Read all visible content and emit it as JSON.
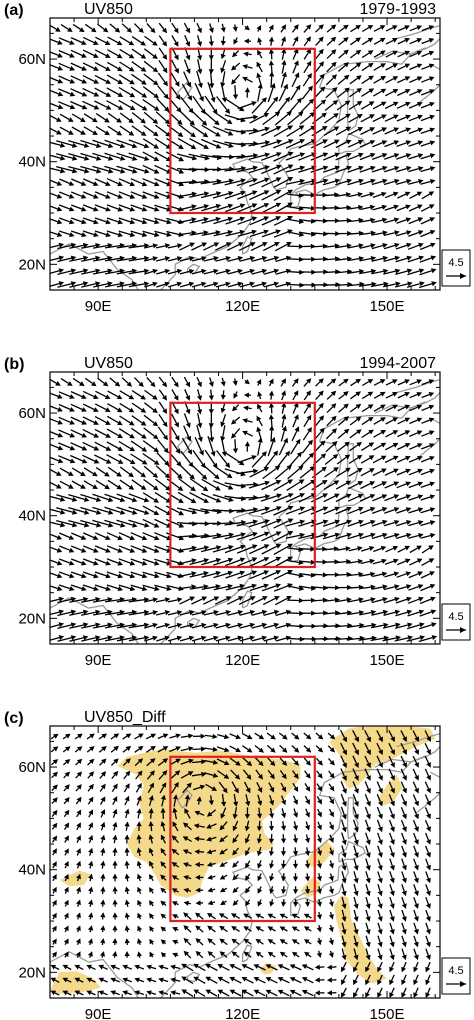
{
  "chart_data": [
    {
      "type": "vector-field",
      "panel_label": "(a)",
      "title": "UV850",
      "period": "1979-1993",
      "x_tick_labels": [
        "90E",
        "120E",
        "150E"
      ],
      "y_tick_labels": [
        "20N",
        "40N",
        "60N"
      ],
      "x_ticks_deg": [
        90,
        120,
        150
      ],
      "y_ticks_deg": [
        20,
        40,
        60
      ],
      "xlim": [
        80,
        161
      ],
      "ylim": [
        15,
        68
      ],
      "region_box": {
        "lon": [
          105,
          135
        ],
        "lat": [
          30,
          62
        ],
        "color": "#e02020"
      },
      "reference_vector": "4.5",
      "flow_pattern": "baseline",
      "shading": false
    },
    {
      "type": "vector-field",
      "panel_label": "(b)",
      "title": "UV850",
      "period": "1994-2007",
      "x_tick_labels": [
        "90E",
        "120E",
        "150E"
      ],
      "y_tick_labels": [
        "20N",
        "40N",
        "60N"
      ],
      "x_ticks_deg": [
        90,
        120,
        150
      ],
      "y_ticks_deg": [
        20,
        40,
        60
      ],
      "xlim": [
        80,
        161
      ],
      "ylim": [
        15,
        68
      ],
      "region_box": {
        "lon": [
          105,
          135
        ],
        "lat": [
          30,
          62
        ],
        "color": "#e02020"
      },
      "reference_vector": "4.5",
      "flow_pattern": "baseline",
      "shading": false
    },
    {
      "type": "vector-field",
      "panel_label": "(c)",
      "title": "UV850_Diff",
      "period": "",
      "x_tick_labels": [
        "90E",
        "120E",
        "150E"
      ],
      "y_tick_labels": [
        "20N",
        "40N",
        "60N"
      ],
      "x_ticks_deg": [
        90,
        120,
        150
      ],
      "y_ticks_deg": [
        20,
        40,
        60
      ],
      "xlim": [
        80,
        161
      ],
      "ylim": [
        15,
        68
      ],
      "region_box": {
        "lon": [
          105,
          135
        ],
        "lat": [
          30,
          62
        ],
        "color": "#e02020"
      },
      "reference_vector": "4.5",
      "flow_pattern": "difference",
      "shading": true,
      "shading_color": "#f5d98a"
    }
  ],
  "colors": {
    "coastline": "#999999",
    "arrows": "#000000"
  }
}
